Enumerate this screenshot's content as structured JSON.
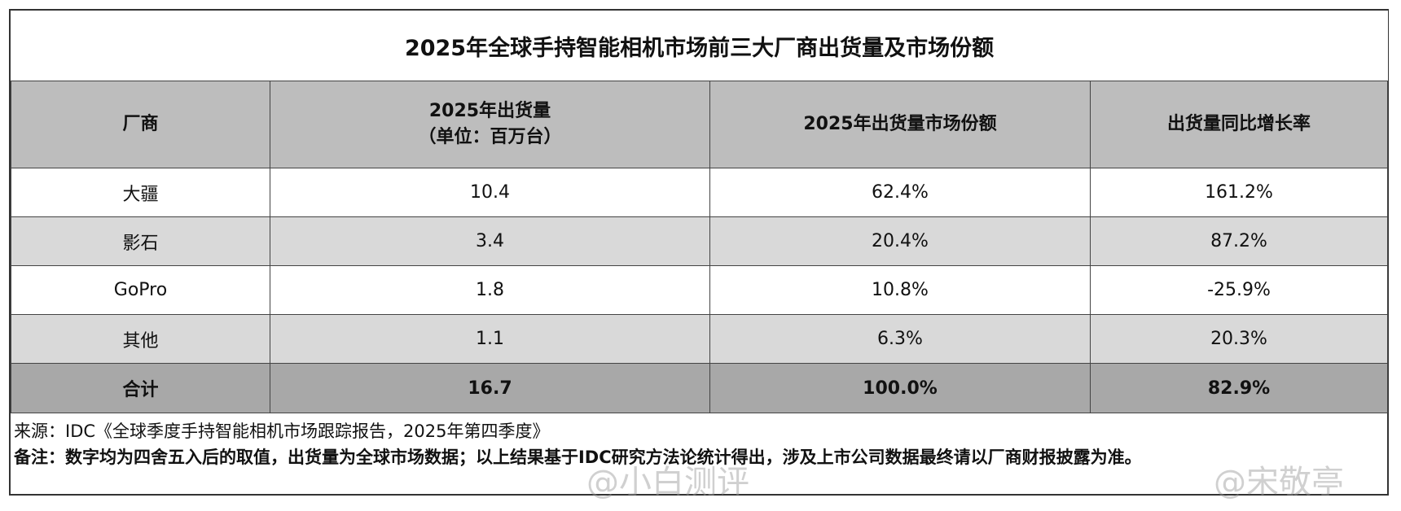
{
  "title": "2025年全球手持智能相机市场前三大厂商出货量及市场份额",
  "table": {
    "header": [
      [
        "厂商"
      ],
      [
        "2025年出货量",
        "（单位：百万台）"
      ],
      [
        "2025年出货量市场份额"
      ],
      [
        "出货量同比增长率"
      ]
    ],
    "rows": [
      [
        "大疆",
        "10.4",
        "62.4%",
        "161.2%"
      ],
      [
        "影石",
        "3.4",
        "20.4%",
        "87.2%"
      ],
      [
        "GoPro",
        "1.8",
        "10.8%",
        "-25.9%"
      ],
      [
        "其他",
        "1.1",
        "6.3%",
        "20.3%"
      ]
    ],
    "total": [
      "合计",
      "16.7",
      "100.0%",
      "82.9%"
    ]
  },
  "notes": {
    "source": "来源：IDC《全球季度手持智能相机市场跟踪报告，2025年第四季度》",
    "remark": "备注：数字均为四舍五入后的取值，出货量为全球市场数据；以上结果基于IDC研究方法论统计得出，涉及上市公司数据最终请以厂商财报披露为准。"
  },
  "watermarks": [
    "@小白测评",
    "@宋敬亭"
  ]
}
